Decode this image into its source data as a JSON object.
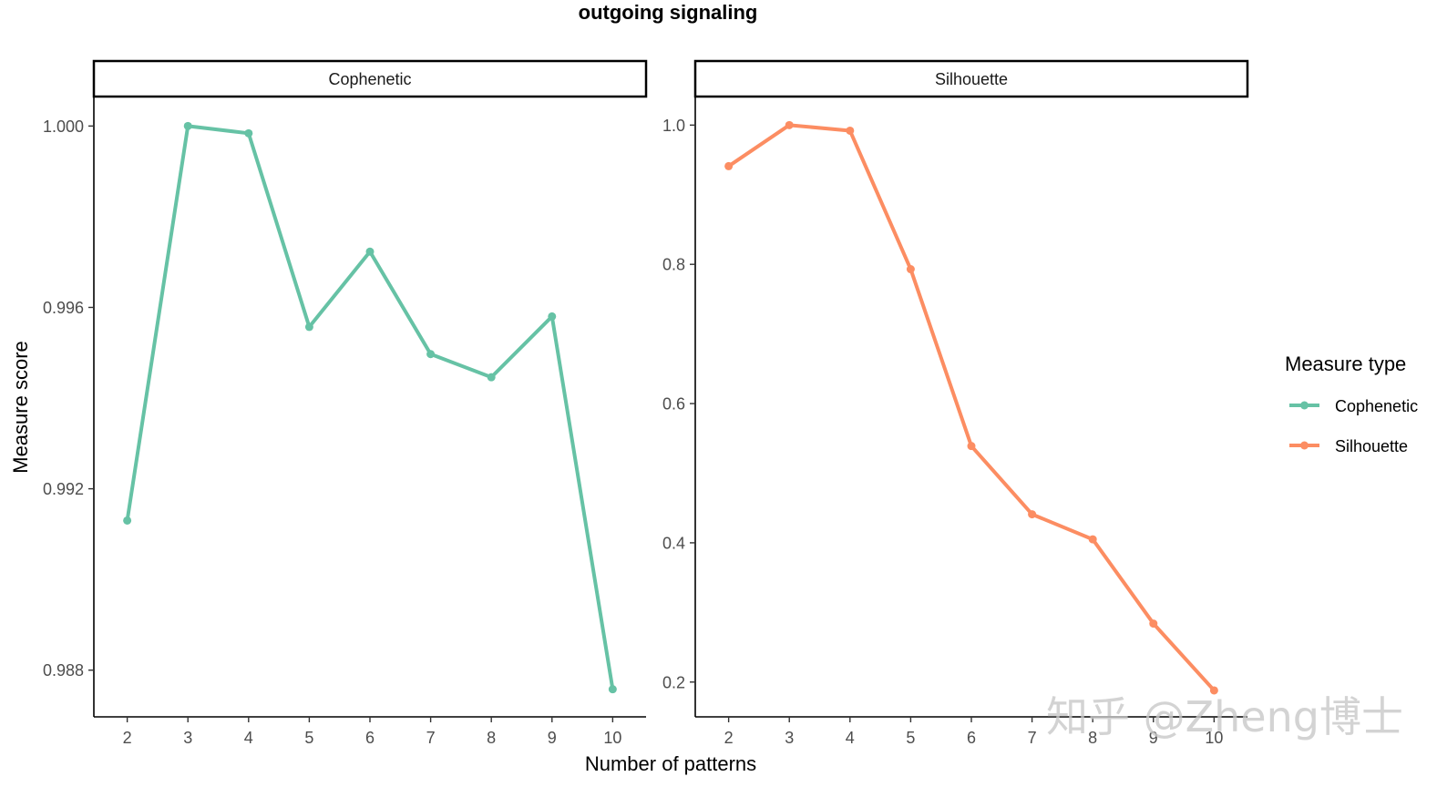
{
  "chart_data": {
    "type": "line",
    "title": "outgoing signaling",
    "xlabel": "Number of patterns",
    "ylabel": "Measure score",
    "legend": {
      "title": "Measure type",
      "position": "right",
      "entries": [
        {
          "name": "Cophenetic",
          "color": "#66C2A5"
        },
        {
          "name": "Silhouette",
          "color": "#FC8D62"
        }
      ]
    },
    "panels": [
      {
        "strip": "Cophenetic",
        "series": "Cophenetic",
        "color": "#66C2A5",
        "x": [
          2,
          3,
          4,
          5,
          6,
          7,
          8,
          9,
          10
        ],
        "values": [
          0.9913,
          1.0,
          0.99984,
          0.99557,
          0.99723,
          0.99497,
          0.99446,
          0.9958,
          0.98758
        ],
        "xlim": [
          1.45,
          10.55
        ],
        "ylim": [
          0.98697,
          1.00065
        ],
        "yticks": [
          0.988,
          0.992,
          0.996,
          1.0
        ],
        "ytick_labels": [
          "0.988",
          "0.992",
          "0.996",
          "1.000"
        ],
        "xtick_labels": [
          "2",
          "3",
          "4",
          "5",
          "6",
          "7",
          "8",
          "9",
          "10"
        ]
      },
      {
        "strip": "Silhouette",
        "series": "Silhouette",
        "color": "#FC8D62",
        "x": [
          2,
          3,
          4,
          5,
          6,
          7,
          8,
          9,
          10
        ],
        "values": [
          0.941,
          1.0,
          0.992,
          0.793,
          0.539,
          0.441,
          0.405,
          0.284,
          0.188
        ],
        "xlim": [
          1.45,
          10.55
        ],
        "ylim": [
          0.15,
          1.041
        ],
        "yticks": [
          0.2,
          0.4,
          0.6,
          0.8,
          1.0
        ],
        "ytick_labels": [
          "0.2",
          "0.4",
          "0.6",
          "0.8",
          "1.0"
        ],
        "xtick_labels": [
          "2",
          "3",
          "4",
          "5",
          "6",
          "7",
          "8",
          "9",
          "10"
        ]
      }
    ]
  },
  "watermark": "知乎 @Zheng博士"
}
